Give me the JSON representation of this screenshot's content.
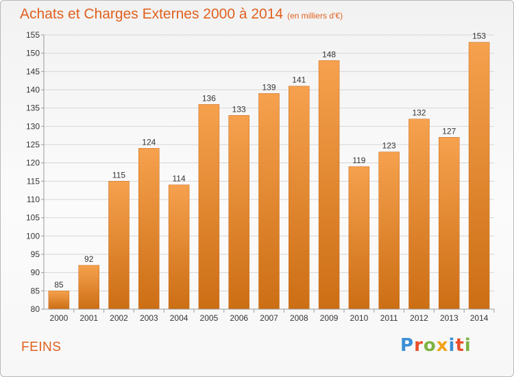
{
  "header": {
    "title": "Achats et Charges Externes 2000 à 2014",
    "subtitle": "(en milliers d'€)"
  },
  "footer": {
    "city": "FEINS",
    "logo": "Proxiti",
    "logo_colors": [
      "#3a8fd6",
      "#e8502a",
      "#7cb342",
      "#f2a31b",
      "#3a8fd6",
      "#e8502a",
      "#7cb342"
    ]
  },
  "colors": {
    "bar_top": "#f6a14e",
    "bar_bottom": "#cc6e14",
    "label": "#333333",
    "text_accent": "#e0601e"
  },
  "chart_data": {
    "type": "bar",
    "title": "Achats et Charges Externes 2000 à 2014",
    "categories": [
      "2000",
      "2001",
      "2002",
      "2003",
      "2004",
      "2005",
      "2006",
      "2007",
      "2008",
      "2009",
      "2010",
      "2011",
      "2012",
      "2013",
      "2014"
    ],
    "values": [
      85,
      92,
      115,
      124,
      114,
      136,
      133,
      139,
      141,
      148,
      119,
      123,
      132,
      127,
      153
    ],
    "ylim": [
      80,
      155
    ],
    "yticks": [
      80,
      85,
      90,
      95,
      100,
      105,
      110,
      115,
      120,
      125,
      130,
      135,
      140,
      145,
      150,
      155
    ],
    "grid": true,
    "data_labels": true
  }
}
